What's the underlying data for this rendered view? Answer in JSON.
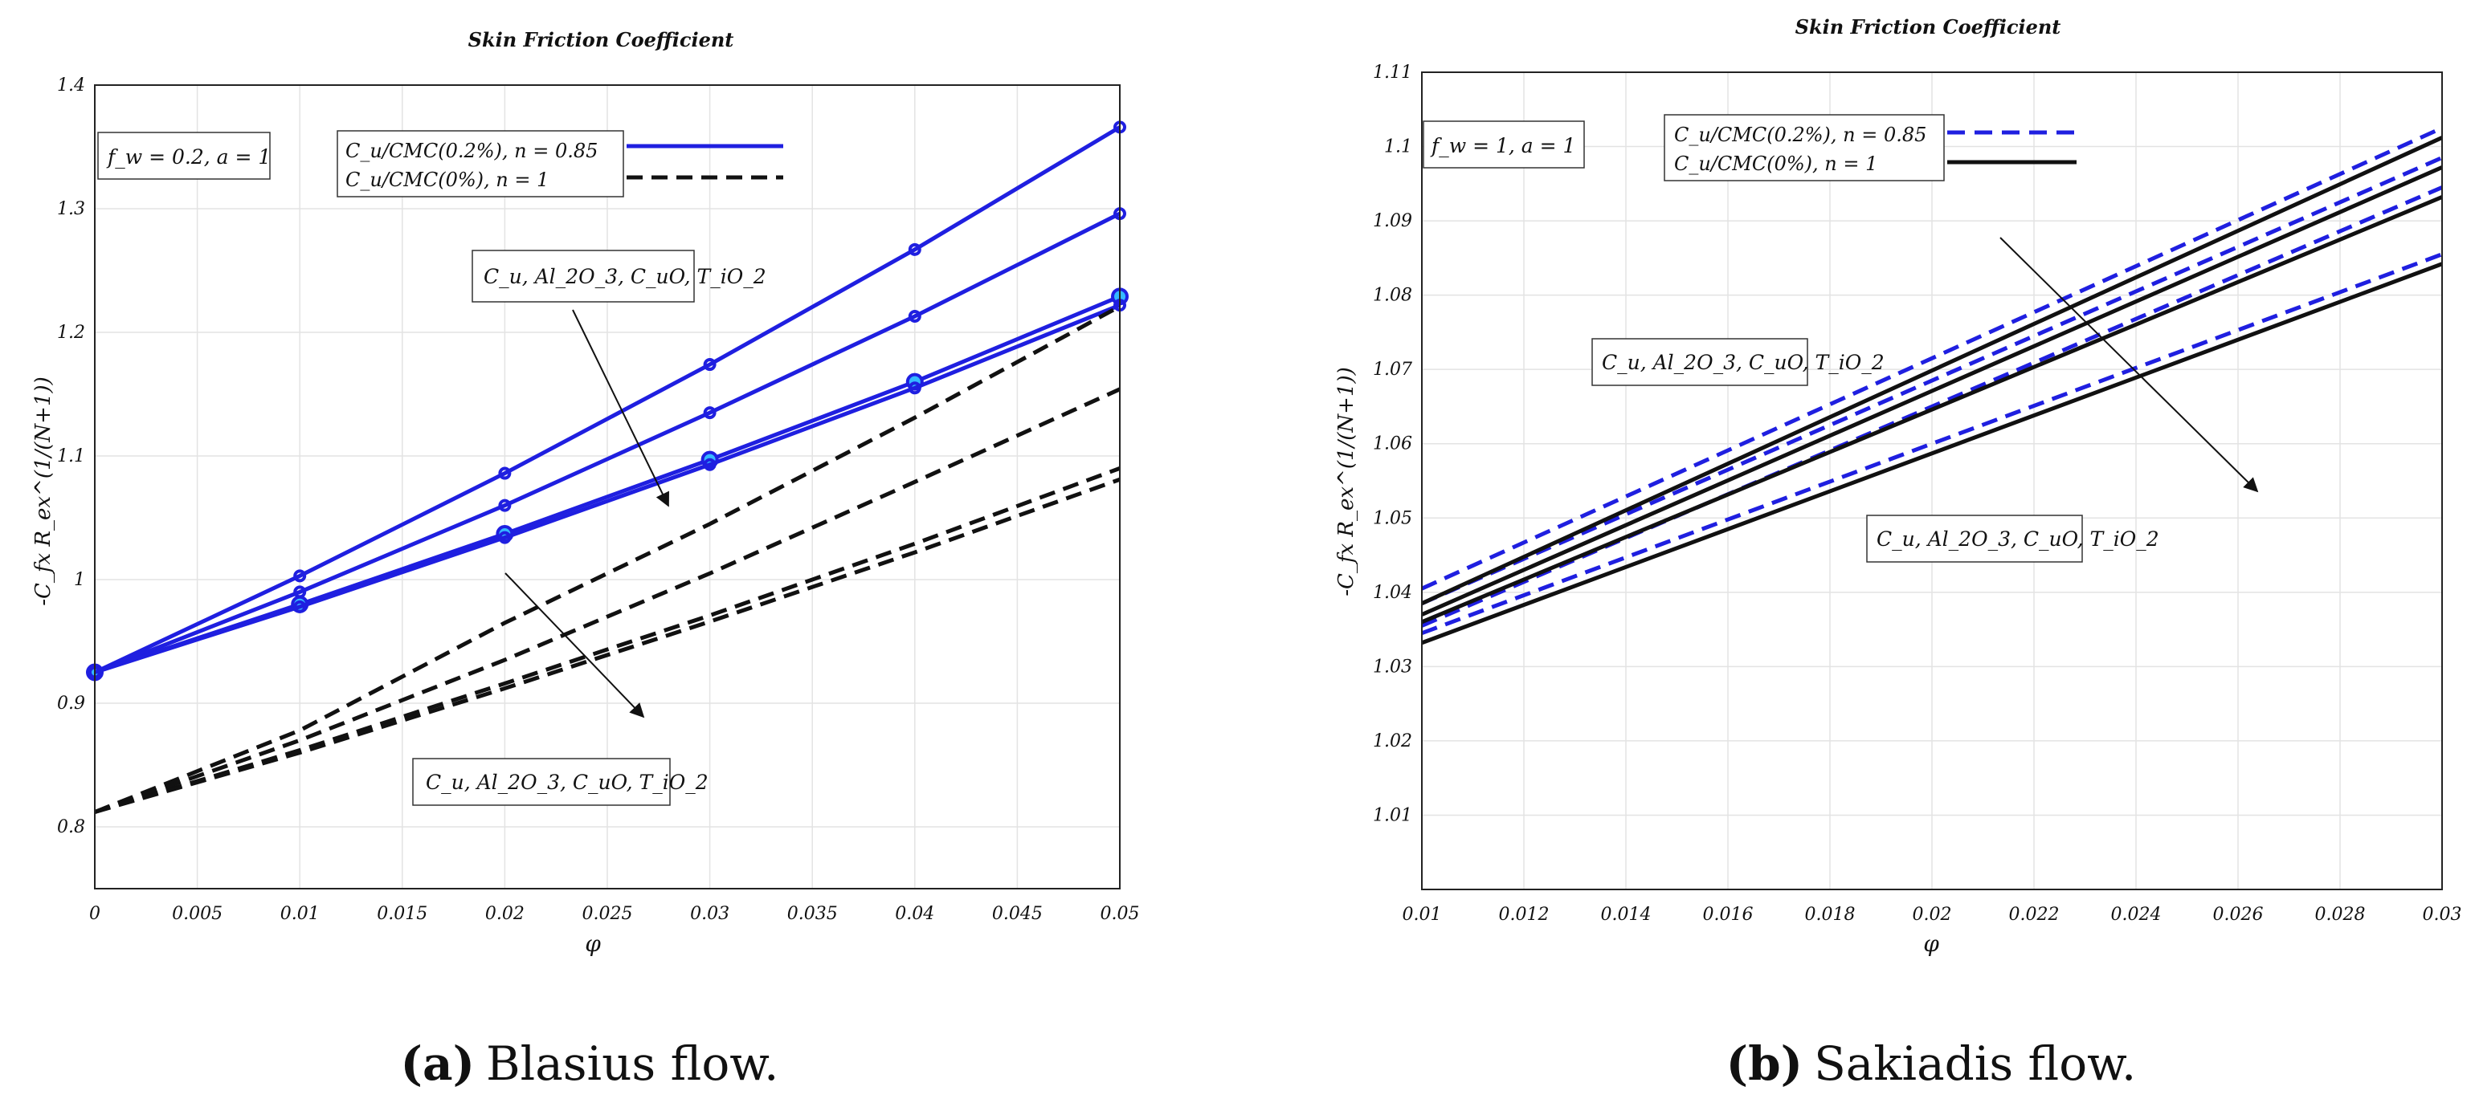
{
  "chart_data": [
    {
      "type": "line",
      "caption_letter": "(a)",
      "caption_text": "Blasius flow.",
      "title": "Skin Friction Coefficient",
      "xlabel": "φ",
      "ylabel": "-C_fx R_ex^(1/(N+1))",
      "xlim": [
        0,
        0.05
      ],
      "ylim": [
        0.75,
        1.4
      ],
      "xticks": [
        "0",
        "0.005",
        "0.01",
        "0.015",
        "0.02",
        "0.025",
        "0.03",
        "0.035",
        "0.04",
        "0.045",
        "0.05"
      ],
      "yticks": [
        "0.8",
        "0.9",
        "1",
        "1.1",
        "1.2",
        "1.3",
        "1.4"
      ],
      "grid": true,
      "param_box": "f_w = 0.2, a = 1",
      "legend": [
        {
          "label": "C_u/CMC(0.2%), n = 0.85",
          "style": "solid",
          "color": "#1f1fe0"
        },
        {
          "label": "C_u/CMC(0%), n = 1",
          "style": "dashed",
          "color": "#111111"
        }
      ],
      "annotations": [
        {
          "text": "C_u, Al_2O_3, C_uO, T_iO_2"
        },
        {
          "text": "C_u, Al_2O_3, C_uO, T_iO_2"
        }
      ],
      "x": [
        0,
        0.01,
        0.02,
        0.03,
        0.04,
        0.05
      ],
      "series": [
        {
          "name": "C_u (CMC 0.2%)",
          "style": "solid",
          "color": "#1f1fe0",
          "marker": "circle",
          "values": [
            0.925,
            1.003,
            1.086,
            1.174,
            1.267,
            1.366
          ]
        },
        {
          "name": "Al_2O_3 (CMC 0.2%)",
          "style": "solid",
          "color": "#1f1fe0",
          "marker": "circle",
          "values": [
            0.925,
            0.99,
            1.06,
            1.135,
            1.213,
            1.296
          ]
        },
        {
          "name": "C_uO (CMC 0.2%)",
          "style": "solid",
          "color": "#1f1fe0",
          "marker": "circle-large",
          "values": [
            0.925,
            0.98,
            1.037,
            1.097,
            1.16,
            1.229
          ]
        },
        {
          "name": "T_iO_2 (CMC 0.2%)",
          "style": "solid",
          "color": "#1f1fe0",
          "marker": "circle",
          "values": [
            0.925,
            0.978,
            1.034,
            1.093,
            1.155,
            1.222
          ]
        },
        {
          "name": "C_u (CMC 0%)",
          "style": "dashed",
          "color": "#111111",
          "values": [
            0.812,
            0.878,
            0.965,
            1.045,
            1.131,
            1.221
          ]
        },
        {
          "name": "Al_2O_3 (CMC 0%)",
          "style": "dashed",
          "color": "#111111",
          "values": [
            0.812,
            0.87,
            0.935,
            1.005,
            1.079,
            1.154
          ]
        },
        {
          "name": "C_uO (CMC 0%)",
          "style": "dashed",
          "color": "#111111",
          "values": [
            0.812,
            0.862,
            0.916,
            0.971,
            1.029,
            1.09
          ]
        },
        {
          "name": "T_iO_2 (CMC 0%)",
          "style": "dashed",
          "color": "#111111",
          "values": [
            0.812,
            0.86,
            0.912,
            0.966,
            1.022,
            1.081
          ]
        }
      ]
    },
    {
      "type": "line",
      "caption_letter": "(b)",
      "caption_text": "Sakiadis flow.",
      "title": "Skin Friction Coefficient",
      "xlabel": "φ",
      "ylabel": "-C_fx R_ex^(1/(N+1))",
      "xlim": [
        0.01,
        0.03
      ],
      "ylim": [
        1.0,
        1.11
      ],
      "xticks": [
        "0.01",
        "0.012",
        "0.014",
        "0.016",
        "0.018",
        "0.02",
        "0.022",
        "0.024",
        "0.026",
        "0.028",
        "0.03"
      ],
      "yticks": [
        "1.01",
        "1.02",
        "1.03",
        "1.04",
        "1.05",
        "1.06",
        "1.07",
        "1.08",
        "1.09",
        "1.1",
        "1.11"
      ],
      "grid": true,
      "param_box": "f_w = 1, a = 1",
      "legend": [
        {
          "label": "C_u/CMC(0.2%), n = 0.85",
          "style": "dashed",
          "color": "#1f1fe0"
        },
        {
          "label": "C_u/CMC(0%), n = 1",
          "style": "solid",
          "color": "#111111"
        }
      ],
      "annotations": [
        {
          "text": "C_u, Al_2O_3, C_uO, T_iO_2"
        },
        {
          "text": "C_u, Al_2O_3, C_uO, T_iO_2"
        }
      ],
      "x": [
        0.01,
        0.03
      ],
      "series": [
        {
          "name": "C_u (CMC 0.2%)",
          "style": "dashed",
          "color": "#1f1fe0",
          "values": [
            1.0405,
            1.1025
          ]
        },
        {
          "name": "Al_2O_3 (CMC 0.2%)",
          "style": "dashed",
          "color": "#1f1fe0",
          "values": [
            1.0385,
            1.0985
          ]
        },
        {
          "name": "C_uO (CMC 0.2%)",
          "style": "dashed",
          "color": "#1f1fe0",
          "values": [
            1.0355,
            1.0945
          ]
        },
        {
          "name": "T_iO_2 (CMC 0.2%)",
          "style": "dashed",
          "color": "#1f1fe0",
          "values": [
            1.0345,
            1.0855
          ]
        },
        {
          "name": "C_u (CMC 0%)",
          "style": "solid",
          "color": "#111111",
          "values": [
            1.0385,
            1.1012
          ]
        },
        {
          "name": "Al_2O_3 (CMC 0%)",
          "style": "solid",
          "color": "#111111",
          "values": [
            1.037,
            1.0972
          ]
        },
        {
          "name": "C_uO (CMC 0%)",
          "style": "solid",
          "color": "#111111",
          "values": [
            1.036,
            1.0932
          ]
        },
        {
          "name": "T_iO_2 (CMC 0%)",
          "style": "solid",
          "color": "#111111",
          "values": [
            1.0332,
            1.0842
          ]
        }
      ]
    }
  ]
}
